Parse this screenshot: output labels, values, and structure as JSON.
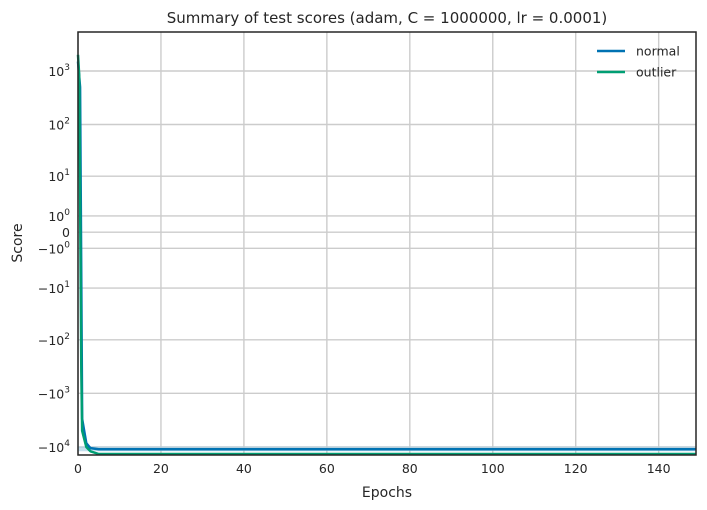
{
  "chart_data": {
    "type": "line",
    "title": "Summary of test scores (adam, C = 1000000, lr = 0.0001)",
    "xlabel": "Epochs",
    "ylabel": "Score",
    "xlim": [
      0,
      149
    ],
    "x_ticks": [
      0,
      20,
      40,
      60,
      80,
      100,
      120,
      140
    ],
    "y_scale": "symlog",
    "y_ticks": [
      {
        "value": 1000,
        "base": "10",
        "exp": "3"
      },
      {
        "value": 100,
        "base": "10",
        "exp": "2"
      },
      {
        "value": 10,
        "base": "10",
        "exp": "1"
      },
      {
        "value": 1,
        "base": "10",
        "exp": "0"
      },
      {
        "value": 0,
        "base": "0",
        "exp": ""
      },
      {
        "value": -1,
        "base": "−10",
        "exp": "0"
      },
      {
        "value": -10,
        "base": "−10",
        "exp": "1"
      },
      {
        "value": -100,
        "base": "−10",
        "exp": "2"
      },
      {
        "value": -1000,
        "base": "−10",
        "exp": "3"
      },
      {
        "value": -10000,
        "base": "−10",
        "exp": "4"
      }
    ],
    "grid": true,
    "legend_position": "top-right",
    "series": [
      {
        "name": "normal",
        "color": "#0072b2",
        "band_color": "#9ecae1",
        "points": [
          [
            0,
            1500
          ],
          [
            0.5,
            500
          ],
          [
            1,
            -3000
          ],
          [
            2,
            -8500
          ],
          [
            3,
            -10500
          ],
          [
            5,
            -11000
          ],
          [
            149,
            -11000
          ]
        ],
        "band": [
          [
            0,
            -9800,
            -12000
          ],
          [
            149,
            -9800,
            -12000
          ]
        ]
      },
      {
        "name": "outlier",
        "color": "#009e73",
        "band_color": "#99d8c9",
        "points": [
          [
            0,
            2000
          ],
          [
            0.3,
            800
          ],
          [
            0.8,
            -400
          ],
          [
            1,
            -5000
          ],
          [
            2,
            -10000
          ],
          [
            3,
            -12000
          ],
          [
            5,
            -13500
          ],
          [
            149,
            -13500
          ]
        ]
      }
    ]
  }
}
